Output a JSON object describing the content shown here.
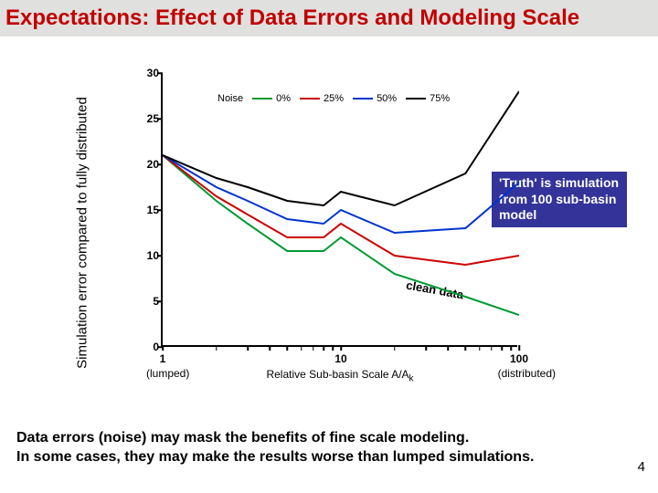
{
  "title": {
    "text": "Expectations: Effect of Data Errors and Modeling Scale",
    "color": "#c00000",
    "strip_bg": "#e0e0de",
    "fontsize": 24
  },
  "chart": {
    "type": "line",
    "background_color": "#ffffff",
    "ylabel": "Simulation error compared to fully distributed",
    "xlabel_html": "Relative Sub-basin Scale A/A<sub>k</sub>",
    "x_anno_left": "(lumped)",
    "x_anno_right": "(distributed)",
    "x_scale": "log",
    "xlim": [
      1,
      100
    ],
    "ylim": [
      0,
      30
    ],
    "ytick_step": 5,
    "xticks": [
      1,
      10,
      100
    ],
    "legend_title": "Noise",
    "legend_title_fontsize": 11,
    "x_points": [
      1,
      2,
      3,
      5,
      8,
      10,
      20,
      50,
      100
    ],
    "series": [
      {
        "name": "0%",
        "color": "#009933",
        "width": 2,
        "y": [
          21,
          16,
          13.5,
          10.5,
          10.5,
          12,
          8,
          5.5,
          3.5
        ]
      },
      {
        "name": "25%",
        "color": "#cc0000",
        "width": 2,
        "y": [
          21,
          16.5,
          14.5,
          12,
          12,
          13.5,
          10,
          9,
          10
        ]
      },
      {
        "name": "50%",
        "color": "#0033cc",
        "width": 2,
        "y": [
          21,
          17.5,
          16,
          14,
          13.5,
          15,
          12.5,
          13,
          18
        ]
      },
      {
        "name": "75%",
        "color": "#000000",
        "width": 2,
        "y": [
          21,
          18.5,
          17.5,
          16,
          15.5,
          17,
          15.5,
          19,
          28
        ]
      }
    ],
    "clean_data_label": {
      "text": "clean data",
      "x": 23,
      "y": 7,
      "rotation_deg": 10
    },
    "truth_callout": {
      "text": "'Truth' is simulation from 100 sub-basin model",
      "bg": "#333399",
      "color": "#ffffff"
    }
  },
  "bottom_note": {
    "line1": "Data errors (noise) may mask the benefits of fine scale modeling.",
    "line2": "In some cases, they may make the results worse than lumped simulations."
  },
  "page_number": "4"
}
